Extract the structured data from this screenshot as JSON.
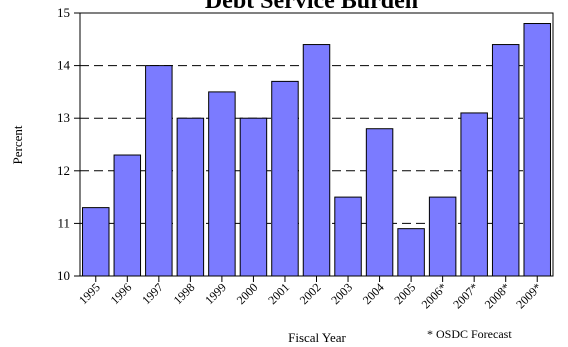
{
  "chart_data": {
    "type": "bar",
    "title": "Debt Service Burden",
    "xlabel": "Fiscal Year",
    "ylabel": "Percent",
    "ylim": [
      10,
      15
    ],
    "yticks": [
      "10",
      "11",
      "12",
      "13",
      "14",
      "15"
    ],
    "grid": true,
    "grid_style": "dashed",
    "categories": [
      "1995",
      "1996",
      "1997",
      "1998",
      "1999",
      "2000",
      "2001",
      "2002",
      "2003",
      "2004",
      "2005",
      "2006*",
      "2007*",
      "2008*",
      "2009*"
    ],
    "values": [
      11.3,
      12.3,
      14.0,
      13.0,
      13.5,
      13.0,
      13.7,
      14.4,
      11.5,
      12.8,
      10.9,
      11.5,
      13.1,
      14.4,
      14.8
    ],
    "bar_color": "#7b7bff",
    "note": "* OSDC Forecast"
  }
}
